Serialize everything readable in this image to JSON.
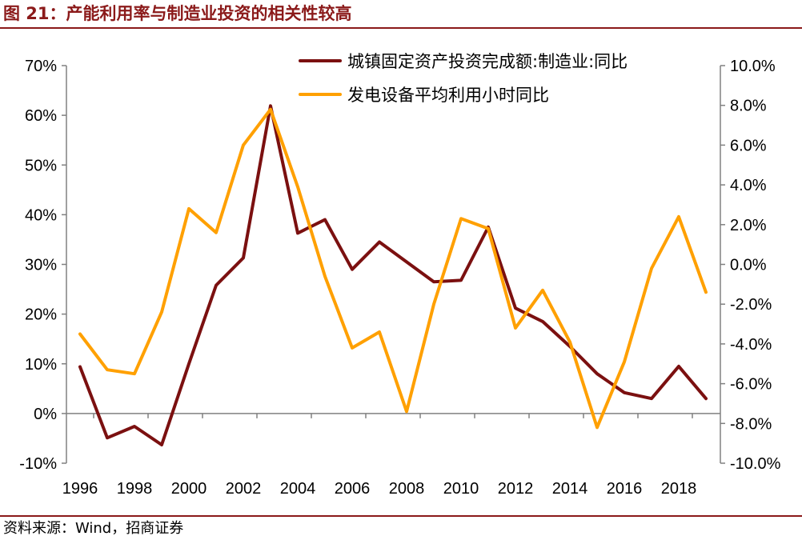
{
  "title": "图 21：产能利用率与制造业投资的相关性较高",
  "source": "资料来源：Wind，招商证券",
  "colors": {
    "accent": "#8B1A1A",
    "series1": "#7B1010",
    "series2": "#FFA000",
    "axis": "#808080"
  },
  "chart_data": {
    "type": "line",
    "title": "",
    "x": [
      1996,
      1997,
      1998,
      1999,
      2000,
      2001,
      2002,
      2003,
      2004,
      2005,
      2006,
      2007,
      2008,
      2009,
      2010,
      2011,
      2012,
      2013,
      2014,
      2015,
      2016,
      2017,
      2018,
      2019
    ],
    "x_tick_labels": [
      "1996",
      "1998",
      "2000",
      "2002",
      "2004",
      "2006",
      "2008",
      "2010",
      "2012",
      "2014",
      "2016",
      "2018"
    ],
    "y_left": {
      "min": -10,
      "max": 70,
      "ticks": [
        "-10%",
        "0%",
        "10%",
        "20%",
        "30%",
        "40%",
        "50%",
        "60%",
        "70%"
      ]
    },
    "y_right": {
      "min": -10,
      "max": 10,
      "ticks": [
        "-10.0%",
        "-8.0%",
        "-6.0%",
        "-4.0%",
        "-2.0%",
        "0.0%",
        "2.0%",
        "4.0%",
        "6.0%",
        "8.0%",
        "10.0%"
      ]
    },
    "grid": false,
    "legend_position": "top-right",
    "series": [
      {
        "name": "城镇固定资产投资完成额:制造业:同比",
        "axis": "left",
        "color": "#7B1010",
        "values": [
          9.4,
          -4.9,
          -2.6,
          -6.3,
          10.0,
          25.8,
          31.3,
          61.9,
          36.3,
          39.0,
          29.0,
          34.5,
          30.5,
          26.5,
          26.8,
          37.5,
          21.2,
          18.5,
          13.5,
          8.0,
          4.2,
          3.0,
          9.5,
          3.0
        ]
      },
      {
        "name": "发电设备平均利用小时同比",
        "axis": "right",
        "color": "#FFA000",
        "values": [
          -3.5,
          -5.3,
          -5.5,
          -2.4,
          2.8,
          1.6,
          6.0,
          7.8,
          3.9,
          -0.6,
          -4.2,
          -3.4,
          -7.4,
          -2.0,
          2.3,
          1.8,
          -3.2,
          -1.3,
          -3.9,
          -8.2,
          -4.9,
          -0.2,
          2.4,
          -1.4
        ]
      }
    ]
  }
}
